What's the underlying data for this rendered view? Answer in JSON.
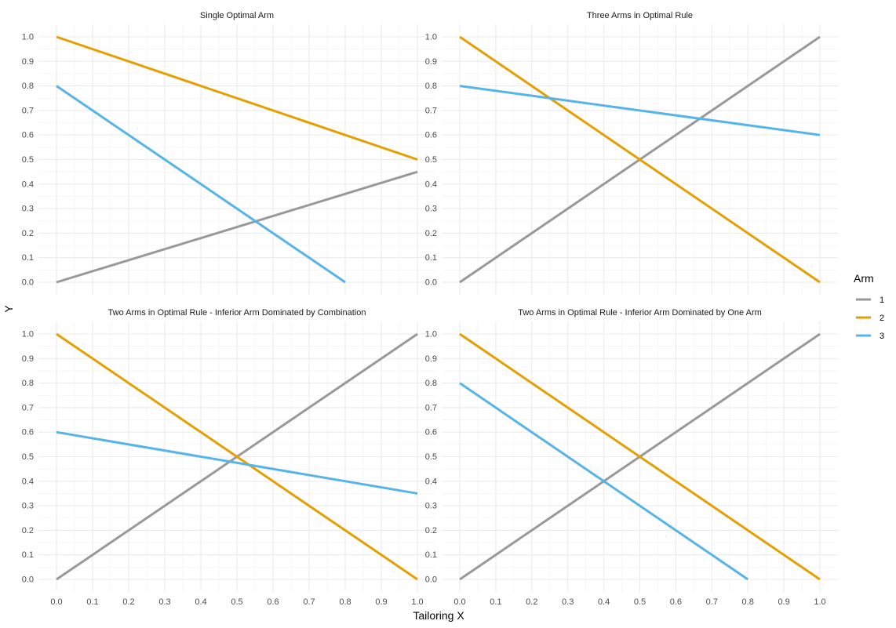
{
  "chart_data": {
    "type": "line",
    "xlabel": "Tailoring X",
    "ylabel": "Y",
    "xlim": [
      0,
      1
    ],
    "ylim": [
      0,
      1
    ],
    "x_ticks": [
      "0.0",
      "0.1",
      "0.2",
      "0.3",
      "0.4",
      "0.5",
      "0.6",
      "0.7",
      "0.8",
      "0.9",
      "1.0"
    ],
    "y_ticks": [
      "0.0",
      "0.1",
      "0.2",
      "0.3",
      "0.4",
      "0.5",
      "0.6",
      "0.7",
      "0.8",
      "0.9",
      "1.0"
    ],
    "grid": true,
    "legend": {
      "title": "Arm",
      "placement": "right",
      "entries": [
        {
          "name": "1",
          "color": "#999999"
        },
        {
          "name": "2",
          "color": "#E69F00"
        },
        {
          "name": "3",
          "color": "#56B4E9"
        }
      ]
    },
    "panels": [
      {
        "title": "Single Optimal Arm",
        "series": [
          {
            "name": "1",
            "x": [
              0.0,
              1.0
            ],
            "y": [
              0.0,
              0.45
            ]
          },
          {
            "name": "2",
            "x": [
              0.0,
              1.0
            ],
            "y": [
              1.0,
              0.5
            ]
          },
          {
            "name": "3",
            "x": [
              0.0,
              0.8
            ],
            "y": [
              0.8,
              0.0
            ]
          }
        ]
      },
      {
        "title": "Three Arms in Optimal Rule",
        "series": [
          {
            "name": "1",
            "x": [
              0.0,
              1.0
            ],
            "y": [
              0.0,
              1.0
            ]
          },
          {
            "name": "2",
            "x": [
              0.0,
              1.0
            ],
            "y": [
              1.0,
              0.0
            ]
          },
          {
            "name": "3",
            "x": [
              0.0,
              1.0
            ],
            "y": [
              0.8,
              0.6
            ]
          }
        ]
      },
      {
        "title": "Two Arms in Optimal Rule - Inferior Arm Dominated by Combination",
        "series": [
          {
            "name": "1",
            "x": [
              0.0,
              1.0
            ],
            "y": [
              0.0,
              1.0
            ]
          },
          {
            "name": "2",
            "x": [
              0.0,
              1.0
            ],
            "y": [
              1.0,
              0.0
            ]
          },
          {
            "name": "3",
            "x": [
              0.0,
              1.0
            ],
            "y": [
              0.6,
              0.35
            ]
          }
        ]
      },
      {
        "title": "Two Arms in Optimal Rule - Inferior Arm Dominated by One Arm",
        "series": [
          {
            "name": "1",
            "x": [
              0.0,
              1.0
            ],
            "y": [
              0.0,
              1.0
            ]
          },
          {
            "name": "2",
            "x": [
              0.0,
              1.0
            ],
            "y": [
              1.0,
              0.0
            ]
          },
          {
            "name": "3",
            "x": [
              0.0,
              0.8
            ],
            "y": [
              0.8,
              0.0
            ]
          }
        ]
      }
    ]
  }
}
